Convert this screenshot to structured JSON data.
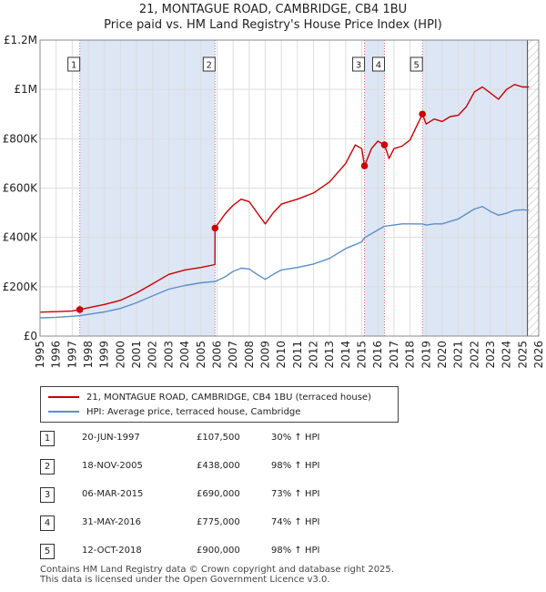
{
  "title": {
    "line1": "21, MONTAGUE ROAD, CAMBRIDGE, CB4 1BU",
    "line2": "Price paid vs. HM Land Registry's House Price Index (HPI)"
  },
  "colors": {
    "property": "#cc0000",
    "hpi": "#5b8fc9",
    "shade": "#dde6f5",
    "marker_line": "#dd6666",
    "grid": "#dddddd"
  },
  "chart_data": {
    "type": "line",
    "title": "21, MONTAGUE ROAD, CAMBRIDGE, CB4 1BU — Price paid vs. HM Land Registry's House Price Index (HPI)",
    "xlabel": "",
    "ylabel": "",
    "xlim": [
      1995,
      2026
    ],
    "ylim": [
      0,
      1200000
    ],
    "grid": true,
    "x_ticks": [
      1995,
      1996,
      1997,
      1998,
      1999,
      2000,
      2001,
      2002,
      2003,
      2004,
      2005,
      2006,
      2007,
      2008,
      2009,
      2010,
      2011,
      2012,
      2013,
      2014,
      2015,
      2016,
      2017,
      2018,
      2019,
      2020,
      2021,
      2022,
      2023,
      2024,
      2025,
      2026
    ],
    "y_ticks": [
      {
        "value": 0,
        "label": "£0"
      },
      {
        "value": 200000,
        "label": "£200K"
      },
      {
        "value": 400000,
        "label": "£400K"
      },
      {
        "value": 600000,
        "label": "£600K"
      },
      {
        "value": 800000,
        "label": "£800K"
      },
      {
        "value": 1000000,
        "label": "£1M"
      },
      {
        "value": 1200000,
        "label": "£1.2M"
      }
    ],
    "series": [
      {
        "name": "21, MONTAGUE ROAD, CAMBRIDGE, CB4 1BU (terraced house)",
        "color": "#cc0000",
        "points": [
          [
            1995.0,
            97000
          ],
          [
            1996.0,
            99000
          ],
          [
            1997.0,
            102000
          ],
          [
            1997.47,
            107500
          ],
          [
            1998.0,
            115000
          ],
          [
            1999.0,
            128000
          ],
          [
            2000.0,
            145000
          ],
          [
            2001.0,
            175000
          ],
          [
            2002.0,
            212000
          ],
          [
            2003.0,
            250000
          ],
          [
            2004.0,
            268000
          ],
          [
            2005.0,
            278000
          ],
          [
            2005.87,
            290000
          ],
          [
            2005.88,
            438000
          ],
          [
            2006.5,
            495000
          ],
          [
            2007.0,
            530000
          ],
          [
            2007.5,
            555000
          ],
          [
            2008.0,
            545000
          ],
          [
            2008.5,
            500000
          ],
          [
            2009.0,
            455000
          ],
          [
            2009.5,
            500000
          ],
          [
            2010.0,
            535000
          ],
          [
            2011.0,
            555000
          ],
          [
            2012.0,
            580000
          ],
          [
            2013.0,
            625000
          ],
          [
            2014.0,
            700000
          ],
          [
            2014.6,
            775000
          ],
          [
            2015.0,
            760000
          ],
          [
            2015.17,
            690000
          ],
          [
            2015.6,
            760000
          ],
          [
            2016.0,
            790000
          ],
          [
            2016.41,
            775000
          ],
          [
            2016.7,
            720000
          ],
          [
            2017.0,
            760000
          ],
          [
            2017.5,
            770000
          ],
          [
            2018.0,
            795000
          ],
          [
            2018.77,
            900000
          ],
          [
            2019.0,
            860000
          ],
          [
            2019.5,
            880000
          ],
          [
            2020.0,
            870000
          ],
          [
            2020.5,
            890000
          ],
          [
            2021.0,
            895000
          ],
          [
            2021.5,
            930000
          ],
          [
            2022.0,
            990000
          ],
          [
            2022.5,
            1010000
          ],
          [
            2023.0,
            985000
          ],
          [
            2023.5,
            960000
          ],
          [
            2024.0,
            1000000
          ],
          [
            2024.5,
            1020000
          ],
          [
            2025.0,
            1010000
          ],
          [
            2025.4,
            1010000
          ]
        ]
      },
      {
        "name": "HPI: Average price, terraced house, Cambridge",
        "color": "#5b8fc9",
        "points": [
          [
            1995.0,
            74000
          ],
          [
            1996.0,
            76000
          ],
          [
            1997.0,
            80000
          ],
          [
            1997.47,
            82700
          ],
          [
            1998.0,
            88000
          ],
          [
            1999.0,
            98000
          ],
          [
            2000.0,
            112000
          ],
          [
            2001.0,
            135000
          ],
          [
            2002.0,
            163000
          ],
          [
            2003.0,
            190000
          ],
          [
            2004.0,
            205000
          ],
          [
            2005.0,
            216000
          ],
          [
            2005.88,
            221000
          ],
          [
            2006.5,
            240000
          ],
          [
            2007.0,
            262000
          ],
          [
            2007.5,
            275000
          ],
          [
            2008.0,
            272000
          ],
          [
            2008.5,
            250000
          ],
          [
            2009.0,
            230000
          ],
          [
            2009.5,
            250000
          ],
          [
            2010.0,
            268000
          ],
          [
            2011.0,
            278000
          ],
          [
            2012.0,
            292000
          ],
          [
            2013.0,
            315000
          ],
          [
            2014.0,
            355000
          ],
          [
            2015.0,
            382000
          ],
          [
            2015.17,
            398800
          ],
          [
            2016.0,
            430000
          ],
          [
            2016.41,
            445400
          ],
          [
            2017.0,
            450000
          ],
          [
            2017.5,
            455000
          ],
          [
            2018.0,
            455000
          ],
          [
            2018.77,
            454500
          ],
          [
            2019.0,
            450000
          ],
          [
            2019.5,
            455000
          ],
          [
            2020.0,
            455000
          ],
          [
            2020.5,
            465000
          ],
          [
            2021.0,
            475000
          ],
          [
            2021.5,
            495000
          ],
          [
            2022.0,
            515000
          ],
          [
            2022.5,
            525000
          ],
          [
            2023.0,
            505000
          ],
          [
            2023.5,
            490000
          ],
          [
            2024.0,
            498000
          ],
          [
            2024.5,
            510000
          ],
          [
            2025.0,
            512000
          ],
          [
            2025.4,
            510000
          ]
        ]
      }
    ],
    "sales": [
      {
        "label": "1",
        "x": 1997.47,
        "value": 107500
      },
      {
        "label": "2",
        "x": 2005.88,
        "value": 438000
      },
      {
        "label": "3",
        "x": 2015.17,
        "value": 690000
      },
      {
        "label": "4",
        "x": 2016.41,
        "value": 775000
      },
      {
        "label": "5",
        "x": 2018.77,
        "value": 900000
      }
    ],
    "shaded_ranges": [
      [
        1997.47,
        2005.88
      ],
      [
        2015.17,
        2016.41
      ],
      [
        2018.77,
        2025.3
      ]
    ],
    "future_start": 2025.3
  },
  "legend": {
    "property_label": "21, MONTAGUE ROAD, CAMBRIDGE, CB4 1BU (terraced house)",
    "hpi_label": "HPI: Average price, terraced house, Cambridge"
  },
  "transactions": [
    {
      "num": "1",
      "date": "20-JUN-1997",
      "price": "£107,500",
      "hpi": "30% ↑ HPI"
    },
    {
      "num": "2",
      "date": "18-NOV-2005",
      "price": "£438,000",
      "hpi": "98% ↑ HPI"
    },
    {
      "num": "3",
      "date": "06-MAR-2015",
      "price": "£690,000",
      "hpi": "73% ↑ HPI"
    },
    {
      "num": "4",
      "date": "31-MAY-2016",
      "price": "£775,000",
      "hpi": "74% ↑ HPI"
    },
    {
      "num": "5",
      "date": "12-OCT-2018",
      "price": "£900,000",
      "hpi": "98% ↑ HPI"
    }
  ],
  "footer": {
    "line1": "Contains HM Land Registry data © Crown copyright and database right 2025.",
    "line2": "This data is licensed under the Open Government Licence v3.0."
  }
}
